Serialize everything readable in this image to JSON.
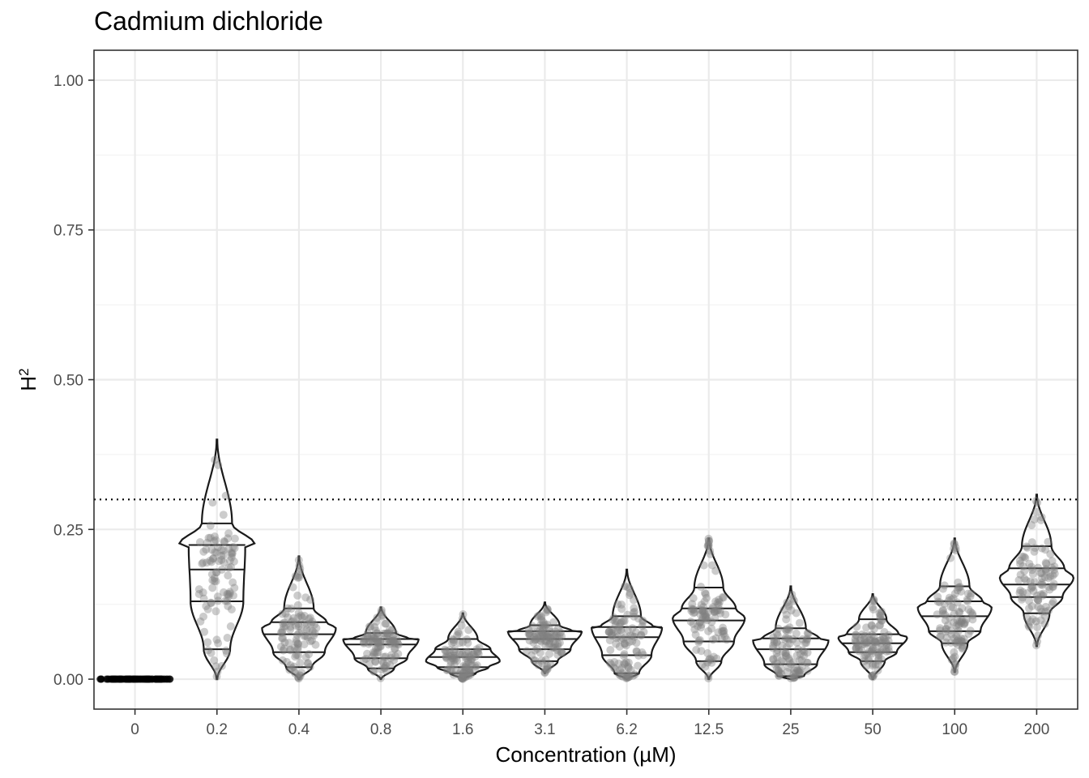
{
  "chart_data": {
    "type": "violin",
    "title": "Cadmium dichloride",
    "xlabel": "Concentration (µM)",
    "ylabel_base": "H",
    "ylabel_sup": "2",
    "ylim": [
      -0.05,
      1.05
    ],
    "yticks": [
      0.0,
      0.25,
      0.5,
      0.75,
      1.0
    ],
    "ytick_labels": [
      "0.00",
      "0.25",
      "0.50",
      "0.75",
      "1.00"
    ],
    "reference_line": {
      "y": 0.3,
      "style": "dotted"
    },
    "grid": true,
    "categories": [
      "0",
      "0.2",
      "0.4",
      "0.8",
      "1.6",
      "3.1",
      "6.2",
      "12.5",
      "25",
      "50",
      "100",
      "200"
    ],
    "series": [
      {
        "category": "0",
        "min": 0.0,
        "max": 0.0,
        "q10": 0.0,
        "q25": 0.0,
        "q50": 0.0,
        "q75": 0.0,
        "q90": 0.0,
        "mode": 0.0,
        "peak_width": 0.43,
        "n": 100
      },
      {
        "category": "0.2",
        "min": 0.0,
        "max": 0.4,
        "q10": 0.05,
        "q25": 0.13,
        "q50": 0.183,
        "q75": 0.224,
        "q90": 0.26,
        "mode": 0.225,
        "peak_width": 0.46,
        "n": 100
      },
      {
        "category": "0.4",
        "min": 0.0,
        "max": 0.205,
        "q10": 0.02,
        "q25": 0.045,
        "q50": 0.075,
        "q75": 0.095,
        "q90": 0.118,
        "mode": 0.085,
        "peak_width": 0.45,
        "n": 100
      },
      {
        "category": "0.8",
        "min": 0.0,
        "max": 0.12,
        "q10": 0.018,
        "q25": 0.035,
        "q50": 0.058,
        "q75": 0.067,
        "q90": 0.077,
        "mode": 0.067,
        "peak_width": 0.46,
        "n": 100
      },
      {
        "category": "1.6",
        "min": 0.0,
        "max": 0.11,
        "q10": 0.01,
        "q25": 0.02,
        "q50": 0.037,
        "q75": 0.05,
        "q90": 0.067,
        "mode": 0.03,
        "peak_width": 0.45,
        "n": 100
      },
      {
        "category": "3.1",
        "min": 0.01,
        "max": 0.128,
        "q10": 0.03,
        "q25": 0.05,
        "q50": 0.067,
        "q75": 0.08,
        "q90": 0.09,
        "mode": 0.08,
        "peak_width": 0.45,
        "n": 100
      },
      {
        "category": "6.2",
        "min": 0.0,
        "max": 0.183,
        "q10": 0.01,
        "q25": 0.04,
        "q50": 0.07,
        "q75": 0.087,
        "q90": 0.105,
        "mode": 0.087,
        "peak_width": 0.43,
        "n": 100
      },
      {
        "category": "12.5",
        "min": 0.0,
        "max": 0.235,
        "q10": 0.03,
        "q25": 0.063,
        "q50": 0.098,
        "q75": 0.118,
        "q90": 0.153,
        "mode": 0.102,
        "peak_width": 0.44,
        "n": 100
      },
      {
        "category": "25",
        "min": 0.0,
        "max": 0.155,
        "q10": 0.005,
        "q25": 0.025,
        "q50": 0.05,
        "q75": 0.068,
        "q90": 0.085,
        "mode": 0.065,
        "peak_width": 0.46,
        "n": 100
      },
      {
        "category": "50",
        "min": 0.0,
        "max": 0.142,
        "q10": 0.03,
        "q25": 0.045,
        "q50": 0.06,
        "q75": 0.075,
        "q90": 0.1,
        "mode": 0.07,
        "peak_width": 0.42,
        "n": 100
      },
      {
        "category": "100",
        "min": 0.012,
        "max": 0.235,
        "q10": 0.06,
        "q25": 0.08,
        "q50": 0.105,
        "q75": 0.13,
        "q90": 0.155,
        "mode": 0.12,
        "peak_width": 0.45,
        "n": 100
      },
      {
        "category": "200",
        "min": 0.055,
        "max": 0.308,
        "q10": 0.11,
        "q25": 0.137,
        "q50": 0.158,
        "q75": 0.185,
        "q90": 0.222,
        "mode": 0.17,
        "peak_width": 0.45,
        "n": 100
      }
    ],
    "colors": {
      "violin_stroke": "#1a1a1a",
      "points": "#808080",
      "grid_major": "#ebebeb",
      "grid_minor": "#f4f4f4",
      "panel_border": "#333333",
      "zero_points": "#000000"
    }
  }
}
